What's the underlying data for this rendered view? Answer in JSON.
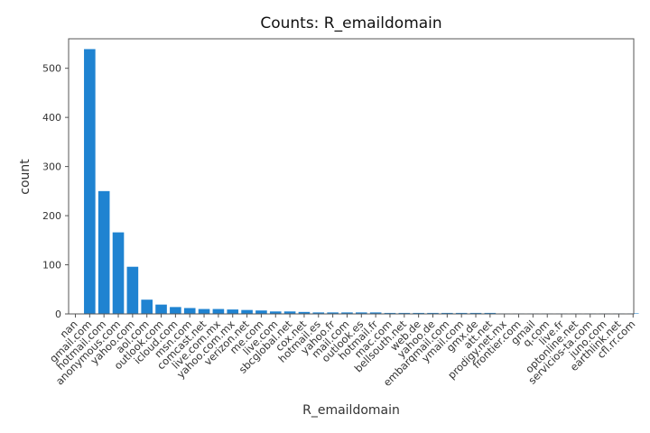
{
  "chart_data": {
    "type": "bar",
    "title": "Counts: R_emaildomain",
    "xlabel": "R_emaildomain",
    "ylabel": "count",
    "ylim": [
      0,
      560
    ],
    "yticks": [
      0,
      100,
      200,
      300,
      400,
      500
    ],
    "grid": false,
    "bar_color": "#1f83d1",
    "categories": [
      "nan",
      "gmail.com",
      "hotmail.com",
      "anonymous.com",
      "yahoo.com",
      "aol.com",
      "outlook.com",
      "icloud.com",
      "msn.com",
      "comcast.net",
      "live.com.mx",
      "yahoo.com.mx",
      "verizon.net",
      "me.com",
      "live.com",
      "sbcglobal.net",
      "cox.net",
      "hotmail.es",
      "yahoo.fr",
      "mail.com",
      "outlook.es",
      "hotmail.fr",
      "mac.com",
      "bellsouth.net",
      "web.de",
      "yahoo.de",
      "embarqmail.com",
      "ymail.com",
      "gmx.de",
      "att.net",
      "prodigy.net.mx",
      "frontier.com",
      "gmail",
      "q.com",
      "live.fr",
      "optonline.net",
      "servicios-ta.com",
      "juno.com",
      "earthlink.net",
      "cfl.rr.com"
    ],
    "values": [
      0,
      539,
      250,
      166,
      96,
      29,
      19,
      14,
      12,
      10,
      10,
      9,
      8,
      7,
      5,
      5,
      4,
      3,
      3,
      3,
      3,
      3,
      2,
      2,
      2,
      2,
      2,
      2,
      2,
      2,
      1,
      1,
      1,
      1,
      1,
      1,
      1,
      1,
      1,
      1
    ]
  }
}
